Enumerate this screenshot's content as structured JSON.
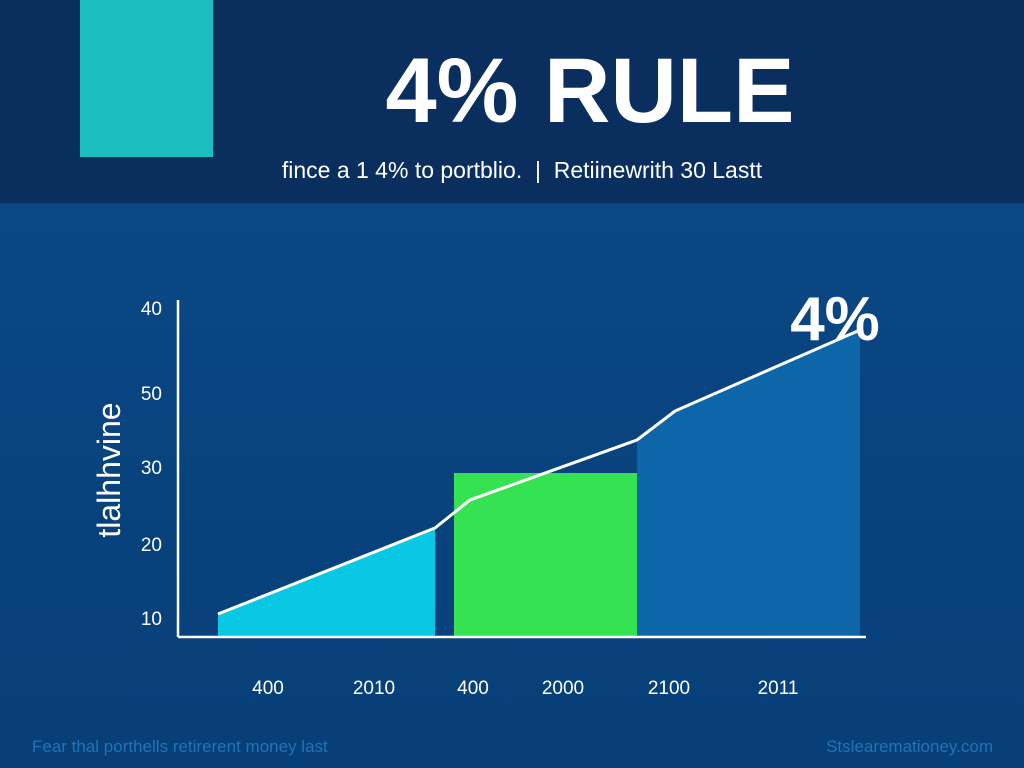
{
  "header": {
    "title": "4% RULE",
    "subtitle": "fince a 1 4% to portblio.  |  Retiinewrith 30 Lastt"
  },
  "chart": {
    "axis_title": "tlalhhvine",
    "callout": "4%",
    "y_labels": [
      "40",
      "50",
      "30",
      "20",
      "10"
    ],
    "x_labels": [
      "400",
      "2010",
      "400",
      "2000",
      "2100",
      "2011"
    ]
  },
  "footer": {
    "caption": "Fear thal porthells retirerent money last",
    "source": "Stslearemationey.com"
  }
}
